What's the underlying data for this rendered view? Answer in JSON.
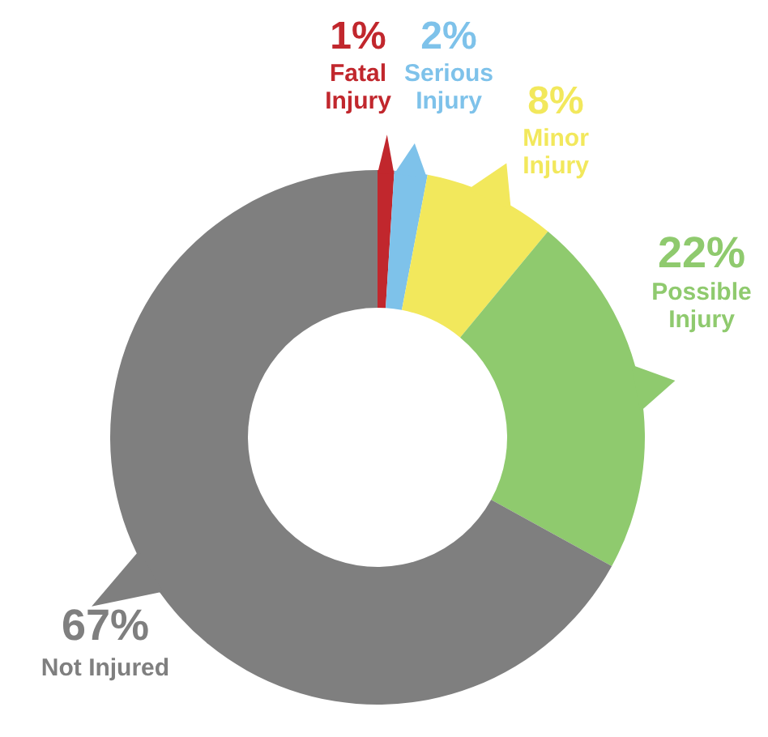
{
  "chart_data": {
    "type": "donut",
    "categories": [
      "Fatal Injury",
      "Serious Injury",
      "Minor Injury",
      "Possible Injury",
      "Not Injured"
    ],
    "values": [
      1,
      2,
      8,
      22,
      67
    ],
    "value_labels": [
      "1%",
      "2%",
      "8%",
      "22%",
      "67%"
    ],
    "colors": [
      "#c1272d",
      "#7ec2ea",
      "#f2e85c",
      "#8fca6e",
      "#7f7f7f"
    ]
  }
}
